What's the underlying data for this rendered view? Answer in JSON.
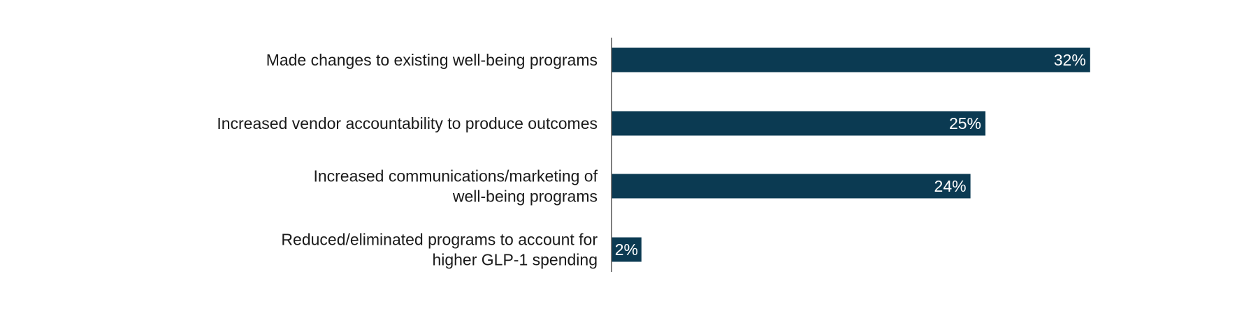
{
  "chart_data": {
    "type": "bar",
    "orientation": "horizontal",
    "categories": [
      [
        "Made changes to existing well-being programs"
      ],
      [
        "Increased vendor accountability to produce outcomes"
      ],
      [
        "Increased communications/marketing of",
        "well-being programs"
      ],
      [
        "Reduced/eliminated programs to account for",
        "higher GLP-1 spending"
      ]
    ],
    "values": [
      32,
      25,
      24,
      2
    ],
    "value_labels": [
      "32%",
      "25%",
      "24%",
      "2%"
    ],
    "unit": "%",
    "title": "",
    "xlabel": "",
    "ylabel": "",
    "xlim": [
      0,
      40
    ],
    "grid": false,
    "legend": "none",
    "colors": {
      "bar": "#0b3a52",
      "axis": "#555555",
      "label_text": "#1a1a1a",
      "value_text": "#ffffff"
    }
  }
}
